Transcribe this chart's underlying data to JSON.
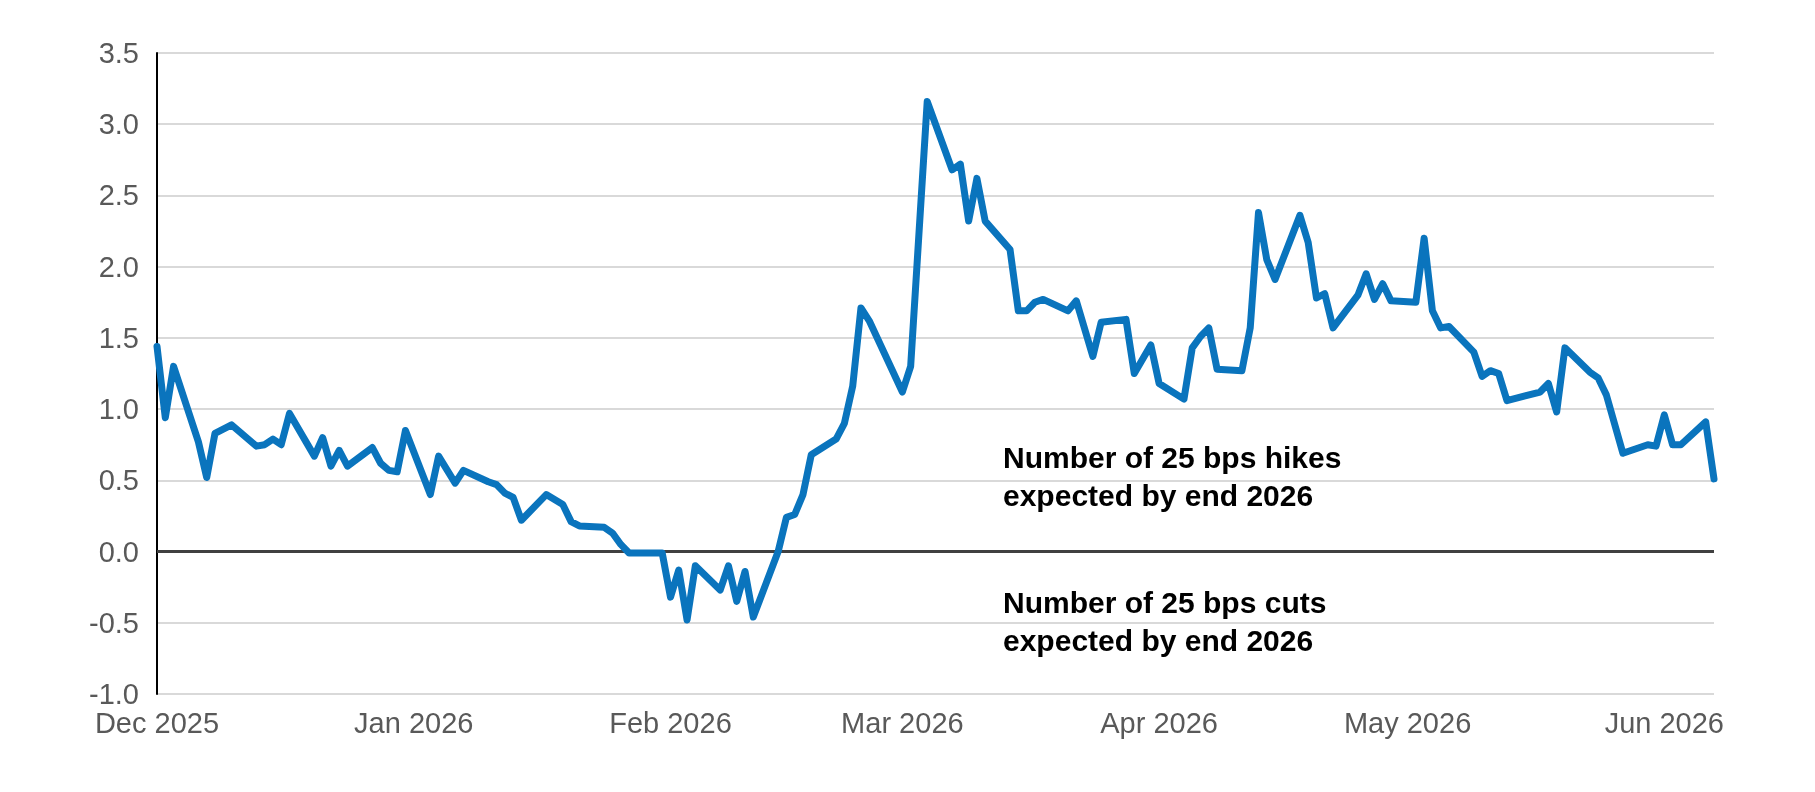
{
  "chart_data": {
    "type": "line",
    "x": [
      "2025-12-01",
      "2025-12-02",
      "2025-12-03",
      "2025-12-06",
      "2025-12-07",
      "2025-12-08",
      "2025-12-10",
      "2025-12-13",
      "2025-12-14",
      "2025-12-15",
      "2025-12-16",
      "2025-12-17",
      "2025-12-20",
      "2025-12-21",
      "2025-12-22",
      "2025-12-23",
      "2025-12-24",
      "2025-12-27",
      "2025-12-28",
      "2025-12-29",
      "2025-12-30",
      "2025-12-31",
      "2026-01-03",
      "2026-01-04",
      "2026-01-06",
      "2026-01-07",
      "2026-01-10",
      "2026-01-11",
      "2026-01-12",
      "2026-01-13",
      "2026-01-14",
      "2026-01-17",
      "2026-01-19",
      "2026-01-20",
      "2026-01-21",
      "2026-01-24",
      "2026-01-25",
      "2026-01-26",
      "2026-01-27",
      "2026-01-31",
      "2026-02-01",
      "2026-02-02",
      "2026-02-03",
      "2026-02-04",
      "2026-02-07",
      "2026-02-08",
      "2026-02-09",
      "2026-02-10",
      "2026-02-11",
      "2026-02-14",
      "2026-02-15",
      "2026-02-16",
      "2026-02-17",
      "2026-02-18",
      "2026-02-21",
      "2026-02-22",
      "2026-02-23",
      "2026-02-24",
      "2026-02-25",
      "2026-03-01",
      "2026-03-02",
      "2026-03-04",
      "2026-03-07",
      "2026-03-08",
      "2026-03-09",
      "2026-03-10",
      "2026-03-11",
      "2026-03-14",
      "2026-03-15",
      "2026-03-16",
      "2026-03-17",
      "2026-03-18",
      "2026-03-21",
      "2026-03-22",
      "2026-03-24",
      "2026-03-25",
      "2026-03-28",
      "2026-03-29",
      "2026-03-31",
      "2026-04-01",
      "2026-04-04",
      "2026-04-05",
      "2026-04-06",
      "2026-04-07",
      "2026-04-08",
      "2026-04-11",
      "2026-04-12",
      "2026-04-13",
      "2026-04-14",
      "2026-04-15",
      "2026-04-18",
      "2026-04-19",
      "2026-04-20",
      "2026-04-21",
      "2026-04-22",
      "2026-04-25",
      "2026-04-26",
      "2026-04-27",
      "2026-04-28",
      "2026-04-29",
      "2026-05-02",
      "2026-05-03",
      "2026-05-04",
      "2026-05-05",
      "2026-05-06",
      "2026-05-09",
      "2026-05-10",
      "2026-05-11",
      "2026-05-12",
      "2026-05-13",
      "2026-05-17",
      "2026-05-18",
      "2026-05-19",
      "2026-05-20",
      "2026-05-23",
      "2026-05-24",
      "2026-05-25",
      "2026-05-27",
      "2026-05-30",
      "2026-05-31",
      "2026-06-01",
      "2026-06-02",
      "2026-06-03",
      "2026-06-06",
      "2026-06-07"
    ],
    "series": [
      {
        "color": "#0a74bd",
        "values": [
          1.44,
          0.94,
          1.3,
          0.77,
          0.52,
          0.83,
          0.89,
          0.74,
          0.75,
          0.79,
          0.75,
          0.97,
          0.67,
          0.8,
          0.6,
          0.71,
          0.6,
          0.73,
          0.62,
          0.57,
          0.56,
          0.85,
          0.4,
          0.67,
          0.48,
          0.57,
          0.49,
          0.47,
          0.41,
          0.38,
          0.22,
          0.4,
          0.33,
          0.21,
          0.18,
          0.17,
          0.13,
          0.05,
          -0.01,
          -0.01,
          -0.32,
          -0.13,
          -0.48,
          -0.1,
          -0.27,
          -0.1,
          -0.35,
          -0.14,
          -0.46,
          0.0,
          0.24,
          0.26,
          0.4,
          0.68,
          0.79,
          0.9,
          1.16,
          1.71,
          1.62,
          1.12,
          1.3,
          3.16,
          2.68,
          2.72,
          2.32,
          2.62,
          2.32,
          2.12,
          1.69,
          1.69,
          1.75,
          1.77,
          1.69,
          1.76,
          1.37,
          1.61,
          1.63,
          1.25,
          1.45,
          1.18,
          1.07,
          1.43,
          1.51,
          1.57,
          1.28,
          1.27,
          1.57,
          2.38,
          2.05,
          1.91,
          2.36,
          2.17,
          1.78,
          1.81,
          1.57,
          1.8,
          1.95,
          1.77,
          1.88,
          1.76,
          1.75,
          2.2,
          1.69,
          1.57,
          1.58,
          1.4,
          1.23,
          1.27,
          1.25,
          1.06,
          1.12,
          1.18,
          0.98,
          1.43,
          1.26,
          1.22,
          1.1,
          0.69,
          0.75,
          0.74,
          0.96,
          0.75,
          0.75,
          0.91,
          0.51
        ]
      }
    ],
    "xlim": [
      "2025-12-01",
      "2026-06-07"
    ],
    "xticks": [
      {
        "value": "2025-12-01",
        "label": "Dec 2025"
      },
      {
        "value": "2026-01-01",
        "label": "Jan 2026"
      },
      {
        "value": "2026-02-01",
        "label": "Feb 2026"
      },
      {
        "value": "2026-03-01",
        "label": "Mar 2026"
      },
      {
        "value": "2026-04-01",
        "label": "Apr 2026"
      },
      {
        "value": "2026-05-01",
        "label": "May 2026"
      },
      {
        "value": "2026-06-01",
        "label": "Jun 2026"
      }
    ],
    "ylim": [
      -1,
      3.5
    ],
    "yticks": [
      {
        "value": -1,
        "label": "-1.0"
      },
      -0.5,
      {
        "value": 0,
        "label": "0.0"
      },
      0.5,
      {
        "value": 1,
        "label": "1.0"
      },
      1.5,
      {
        "value": 2,
        "label": "2.0"
      },
      2.5,
      {
        "value": 3,
        "label": "3.0"
      },
      3.5
    ],
    "ref_lines": [
      {
        "axis": "y",
        "value": 0,
        "color": "#404040"
      }
    ],
    "annotations": [
      "Number of 25 bps hikes\nexpected by end 2026",
      "Number of 25 bps cuts\nexpected by end 2026"
    ],
    "grid": "y",
    "marker": "none",
    "line_style": "solid"
  }
}
